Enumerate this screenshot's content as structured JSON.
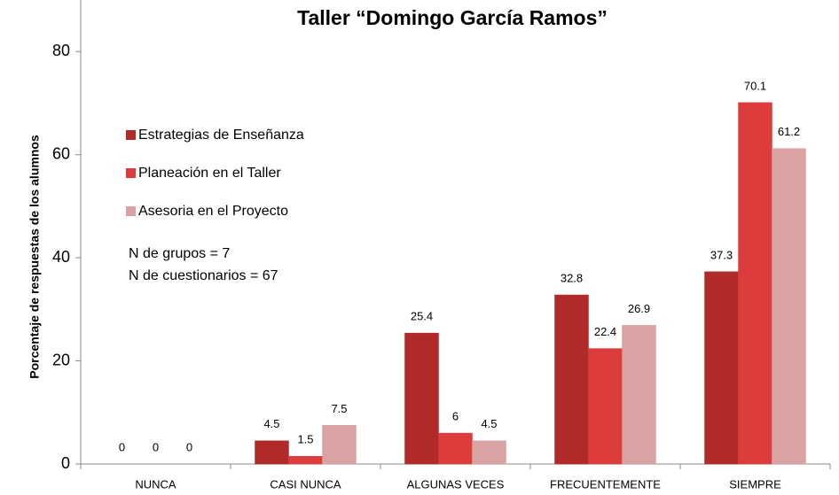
{
  "chart_data": {
    "type": "bar",
    "title": "Taller “Domingo García Ramos”",
    "ylabel": "Porcentaje de respuestas de los alumnos",
    "categories": [
      "NUNCA",
      "CASI NUNCA",
      "ALGUNAS VECES",
      "FRECUENTEMENTE",
      "SIEMPRE"
    ],
    "series": [
      {
        "name": "Estrategias de Enseñanza",
        "color": "#b02a2a",
        "values": [
          0,
          4.5,
          25.4,
          32.8,
          37.3
        ]
      },
      {
        "name": "Planeación en el Taller",
        "color": "#dc3c3c",
        "values": [
          0,
          1.5,
          6,
          22.4,
          70.1
        ]
      },
      {
        "name": "Asesoria en el Proyecto",
        "color": "#d9a3a3",
        "values": [
          0,
          7.5,
          4.5,
          26.9,
          61.2
        ]
      }
    ],
    "annotations": [
      "N de grupos = 7",
      "N de cuestionarios = 67"
    ],
    "ylim": [
      0,
      90
    ],
    "yticks": [
      0,
      20,
      40,
      60,
      80
    ],
    "legend": "upper left"
  }
}
